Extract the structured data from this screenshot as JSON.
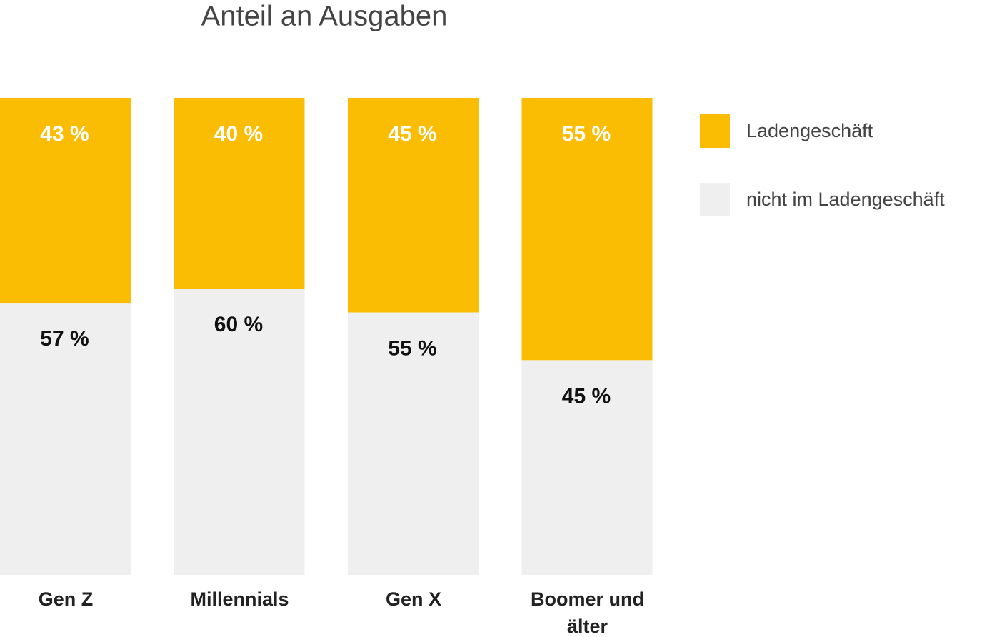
{
  "chart_data": {
    "type": "stacked_bar_100",
    "title": "Anteil an Ausgaben",
    "categories": [
      "Gen Z",
      "Millennials",
      "Gen X",
      "Boomer und älter"
    ],
    "series": [
      {
        "name": "Ladengeschäft",
        "color": "#fbbc04",
        "values": [
          43,
          40,
          45,
          55
        ],
        "value_labels": [
          "43 %",
          "40 %",
          "45 %",
          "55 %"
        ]
      },
      {
        "name": "nicht im Ladengeschäft",
        "color": "#efefef",
        "values": [
          57,
          60,
          55,
          45
        ],
        "value_labels": [
          "57 %",
          "60 %",
          "55 %",
          "45 %"
        ]
      }
    ],
    "legend": "right"
  }
}
